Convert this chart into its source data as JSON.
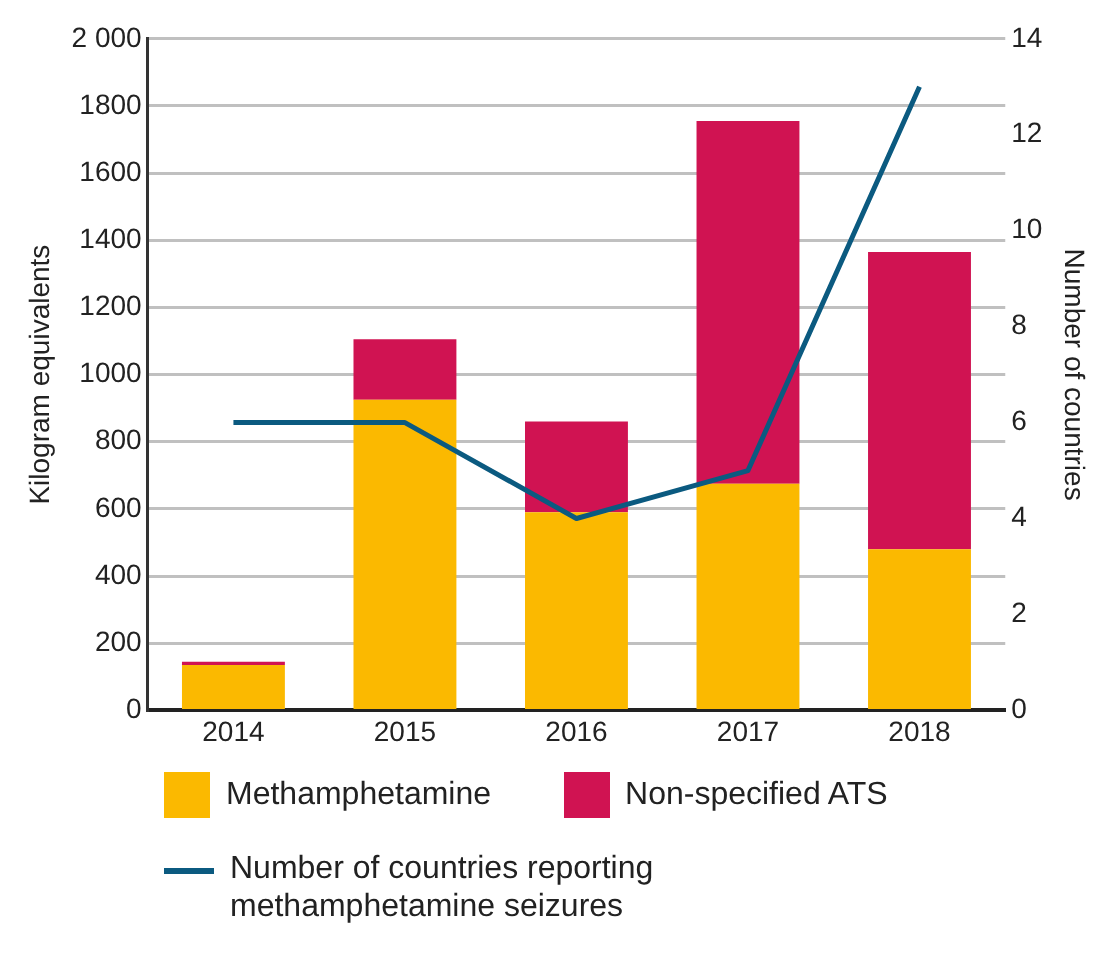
{
  "chart_data": {
    "type": "bar",
    "stacked": true,
    "categories": [
      "2014",
      "2015",
      "2016",
      "2017",
      "2018"
    ],
    "ylabel": "Kilogram equivalents",
    "y2label": "Number of countries",
    "ylim": [
      0,
      2000
    ],
    "yticks": [
      0,
      200,
      400,
      600,
      800,
      1000,
      1200,
      1400,
      1600,
      1800,
      {
        "value": 2000,
        "label": "2 000"
      }
    ],
    "y2lim": [
      0,
      14
    ],
    "y2ticks": [
      0,
      2,
      4,
      6,
      8,
      10,
      12,
      14
    ],
    "grid": "y",
    "legend": "bottom",
    "series": [
      {
        "name": "Methamphetamine",
        "color": "#fbb900",
        "values": [
          135,
          925,
          590,
          675,
          480
        ]
      },
      {
        "name": "Non-specified ATS",
        "color": "#d01352",
        "values": [
          10,
          180,
          270,
          1080,
          885
        ]
      },
      {
        "name": "Number of countries reporting methamphetamine seizures",
        "type": "line",
        "axis": "y2",
        "color": "#0b5a80",
        "values": [
          6,
          6,
          4,
          5,
          13
        ]
      }
    ]
  }
}
